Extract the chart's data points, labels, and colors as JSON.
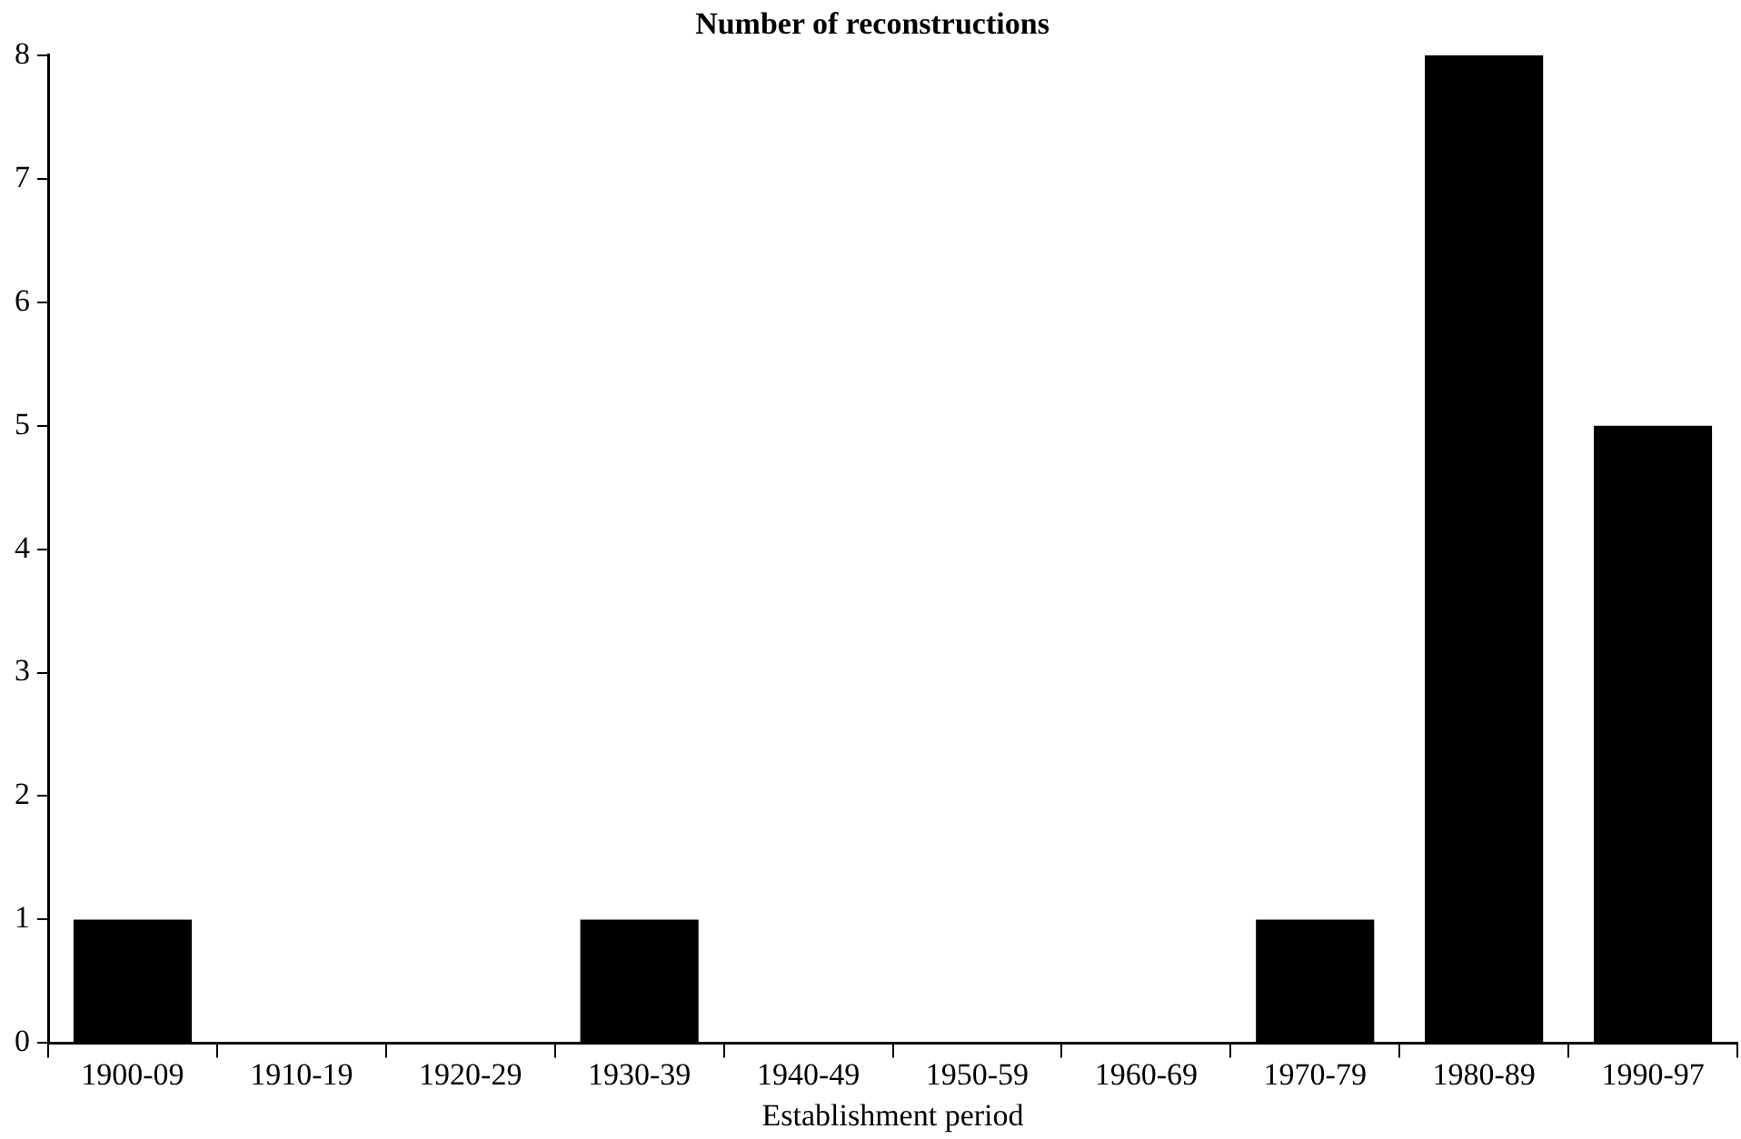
{
  "chart_data": {
    "type": "bar",
    "title": "Number of reconstructions",
    "xlabel": "Establishment period",
    "categories": [
      "1900-09",
      "1910-19",
      "1920-29",
      "1930-39",
      "1940-49",
      "1950-59",
      "1960-69",
      "1970-79",
      "1980-89",
      "1990-97"
    ],
    "values": [
      1,
      0,
      0,
      1,
      0,
      0,
      0,
      1,
      8,
      5
    ],
    "color": "#000000",
    "ylim": [
      0,
      8
    ],
    "yticks": [
      0,
      1,
      2,
      3,
      4,
      5,
      6,
      7,
      8
    ],
    "grid": false
  }
}
